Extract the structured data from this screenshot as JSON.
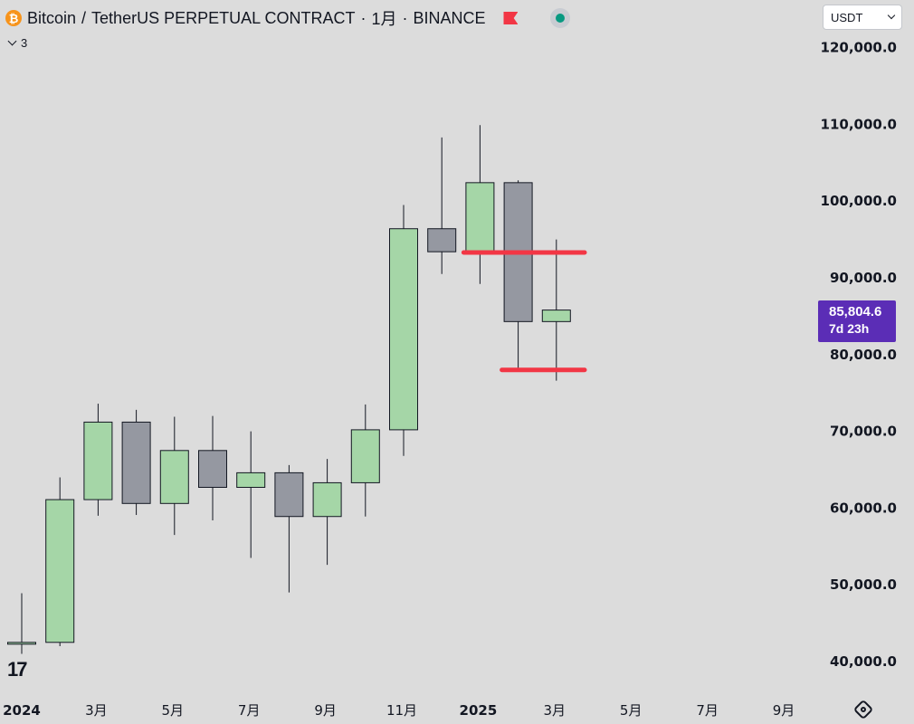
{
  "header": {
    "base": "Bitcoin",
    "separator": "/",
    "quote": "TetherUS PERPETUAL CONTRACT",
    "interval": "1月",
    "exchange": "BINANCE",
    "coin_icon": "bitcoin-icon",
    "flag_icon": "flag-icon",
    "dot_icon": "status-dot-icon"
  },
  "collapse": {
    "count": "3"
  },
  "currency_select": {
    "value": "USDT"
  },
  "price_tag": {
    "price": "85,804.6",
    "countdown": "7d 23h",
    "color": "#5b2db6"
  },
  "colors": {
    "up": "#a5d6a7",
    "down": "#9598a1",
    "level_line": "#f23645",
    "text": "#131722"
  },
  "chart_data": {
    "type": "candlestick",
    "y_axis": {
      "ticks": [
        40000,
        50000,
        60000,
        70000,
        80000,
        90000,
        100000,
        110000,
        120000
      ],
      "tick_labels": [
        "40,000.0",
        "50,000.0",
        "60,000.0",
        "70,000.0",
        "80,000.0",
        "90,000.0",
        "100,000.0",
        "110,000.0",
        "120,000.0"
      ]
    },
    "x_axis": {
      "labels": [
        {
          "text": "2024",
          "index": 0,
          "bold": true
        },
        {
          "text": "3月",
          "index": 2
        },
        {
          "text": "5月",
          "index": 4
        },
        {
          "text": "7月",
          "index": 6
        },
        {
          "text": "9月",
          "index": 8
        },
        {
          "text": "11月",
          "index": 10
        },
        {
          "text": "2025",
          "index": 12,
          "bold": true
        },
        {
          "text": "3月",
          "index": 14
        },
        {
          "text": "5月",
          "index": 16
        },
        {
          "text": "7月",
          "index": 18
        },
        {
          "text": "9月",
          "index": 20
        }
      ]
    },
    "candles": [
      {
        "open": 42300,
        "high": 48900,
        "low": 41000,
        "close": 42500
      },
      {
        "open": 42500,
        "high": 64000,
        "low": 42000,
        "close": 61100
      },
      {
        "open": 61100,
        "high": 73600,
        "low": 59000,
        "close": 71200
      },
      {
        "open": 71200,
        "high": 72800,
        "low": 59100,
        "close": 60600
      },
      {
        "open": 60600,
        "high": 71900,
        "low": 56500,
        "close": 67500
      },
      {
        "open": 67500,
        "high": 72000,
        "low": 58400,
        "close": 62700
      },
      {
        "open": 62700,
        "high": 70000,
        "low": 53500,
        "close": 64600
      },
      {
        "open": 64600,
        "high": 65600,
        "low": 49000,
        "close": 58900
      },
      {
        "open": 58900,
        "high": 66400,
        "low": 52600,
        "close": 63300
      },
      {
        "open": 63300,
        "high": 73500,
        "low": 58900,
        "close": 70200
      },
      {
        "open": 70200,
        "high": 99500,
        "low": 66800,
        "close": 96400
      },
      {
        "open": 96400,
        "high": 108300,
        "low": 90500,
        "close": 93400
      },
      {
        "open": 93400,
        "high": 109900,
        "low": 89200,
        "close": 102400
      },
      {
        "open": 102400,
        "high": 102700,
        "low": 78200,
        "close": 84300
      },
      {
        "open": 84300,
        "high": 95000,
        "low": 76600,
        "close": 85800
      }
    ],
    "level_lines": [
      {
        "price": 93300,
        "start_index": 12,
        "end_index": 15
      },
      {
        "price": 78000,
        "start_index": 13,
        "end_index": 15
      }
    ]
  }
}
